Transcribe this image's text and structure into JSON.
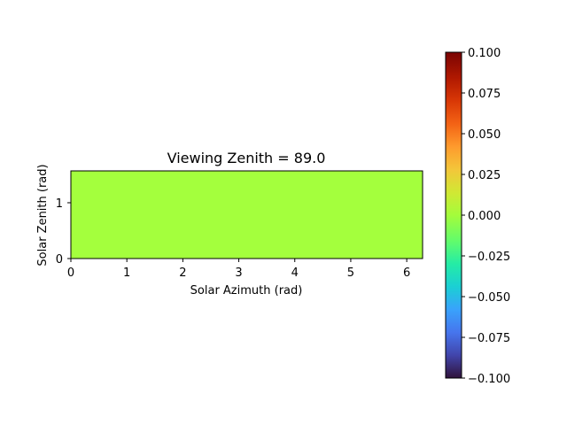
{
  "chart_data": {
    "type": "heatmap",
    "title": "Viewing Zenith = 89.0",
    "xlabel": "Solar Azimuth (rad)",
    "ylabel": "Solar Zenith (rad)",
    "xlim": [
      0,
      6.2832
    ],
    "ylim": [
      0,
      1.5708
    ],
    "xticks": [
      "0",
      "1",
      "2",
      "3",
      "4",
      "5",
      "6"
    ],
    "yticks": [
      "0",
      "1"
    ],
    "values": [
      [
        0.0
      ]
    ],
    "fill_color": "#a4ff3d",
    "colorbar": {
      "vmin": -0.1,
      "vmax": 0.1,
      "ticks": [
        "0.100",
        "0.075",
        "0.050",
        "0.025",
        "0.000",
        "−0.025",
        "−0.050",
        "−0.075",
        "−0.100"
      ],
      "colormap": "turbo"
    }
  }
}
